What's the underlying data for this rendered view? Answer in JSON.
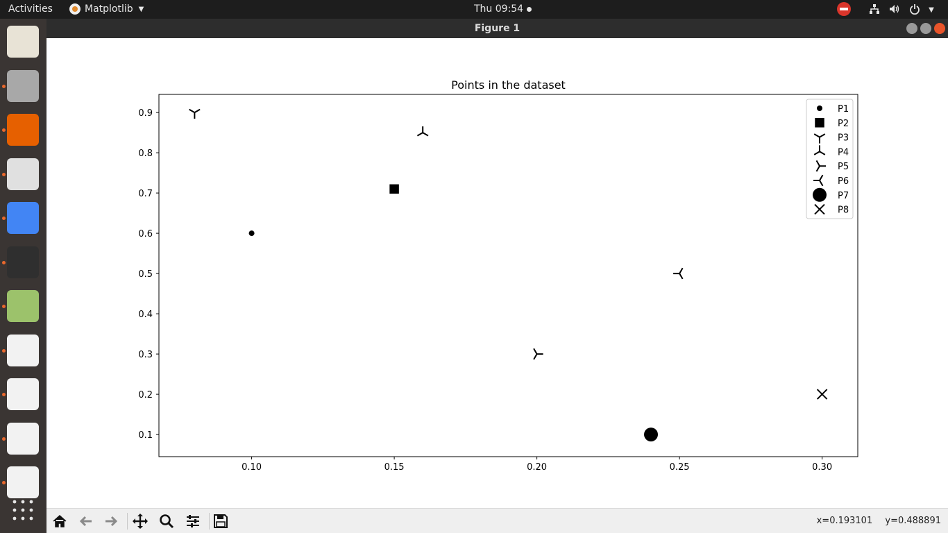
{
  "topbar": {
    "activities": "Activities",
    "app_name": "Matplotlib",
    "clock": "Thu 09:54"
  },
  "window": {
    "title": "Figure 1"
  },
  "dock": {
    "items": [
      {
        "name": "text-editor-icon",
        "color": "#e8e3d6",
        "running": false
      },
      {
        "name": "files-icon",
        "color": "#a8a8a8",
        "running": true
      },
      {
        "name": "firefox-icon",
        "color": "#e66000",
        "running": true
      },
      {
        "name": "document-viewer-icon",
        "color": "#e0e0e0",
        "running": true
      },
      {
        "name": "chrome-icon",
        "color": "#4285f4",
        "running": true
      },
      {
        "name": "terminal-icon",
        "color": "#2f2f2f",
        "running": true
      },
      {
        "name": "image-viewer-icon",
        "color": "#9cc26b",
        "running": true
      },
      {
        "name": "python-script-icon",
        "color": "#f2f2f2",
        "running": true
      },
      {
        "name": "python-script-icon",
        "color": "#f2f2f2",
        "running": true
      },
      {
        "name": "python-script-icon",
        "color": "#f2f2f2",
        "running": true
      },
      {
        "name": "python-script-icon",
        "color": "#f2f2f2",
        "running": true
      }
    ],
    "apps_grid": "show-applications-icon"
  },
  "chart_data": {
    "type": "scatter",
    "title": "Points in the dataset",
    "xlabel": "",
    "ylabel": "",
    "xlim": [
      0.0675,
      0.3125
    ],
    "ylim": [
      0.045,
      0.945
    ],
    "xticks": [
      "0.10",
      "0.15",
      "0.20",
      "0.25",
      "0.30"
    ],
    "xtick_values": [
      0.1,
      0.15,
      0.2,
      0.25,
      0.3
    ],
    "yticks": [
      "0.1",
      "0.2",
      "0.3",
      "0.4",
      "0.5",
      "0.6",
      "0.7",
      "0.8",
      "0.9"
    ],
    "ytick_values": [
      0.1,
      0.2,
      0.3,
      0.4,
      0.5,
      0.6,
      0.7,
      0.8,
      0.9
    ],
    "legend_position": "top-right",
    "series": [
      {
        "name": "P1",
        "x": 0.1,
        "y": 0.6,
        "marker": "point"
      },
      {
        "name": "P2",
        "x": 0.15,
        "y": 0.71,
        "marker": "square"
      },
      {
        "name": "P3",
        "x": 0.08,
        "y": 0.9,
        "marker": "tri_down"
      },
      {
        "name": "P4",
        "x": 0.16,
        "y": 0.85,
        "marker": "tri_up"
      },
      {
        "name": "P5",
        "x": 0.2,
        "y": 0.3,
        "marker": "tri_left"
      },
      {
        "name": "P6",
        "x": 0.25,
        "y": 0.5,
        "marker": "tri_right"
      },
      {
        "name": "P7",
        "x": 0.24,
        "y": 0.1,
        "marker": "circle"
      },
      {
        "name": "P8",
        "x": 0.3,
        "y": 0.2,
        "marker": "x"
      }
    ]
  },
  "toolbar": {
    "buttons": [
      "home-icon",
      "back-icon",
      "forward-icon",
      "pan-icon",
      "zoom-icon",
      "configure-icon",
      "save-icon"
    ],
    "coords_x": "x=0.193101",
    "coords_y": "y=0.488891"
  }
}
